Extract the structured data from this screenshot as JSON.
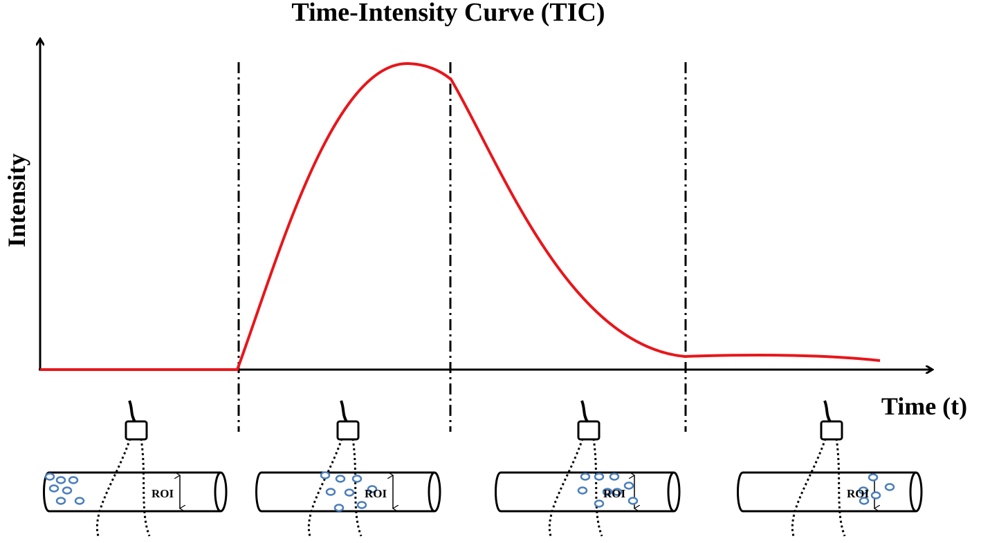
{
  "title": "Time-Intensity Curve (TIC)",
  "axes": {
    "y_label": "Intensity",
    "x_label": "Time (t)"
  },
  "panels": [
    {
      "label": "ROI"
    },
    {
      "label": "ROI"
    },
    {
      "label": "ROI"
    },
    {
      "label": "ROI"
    }
  ]
}
